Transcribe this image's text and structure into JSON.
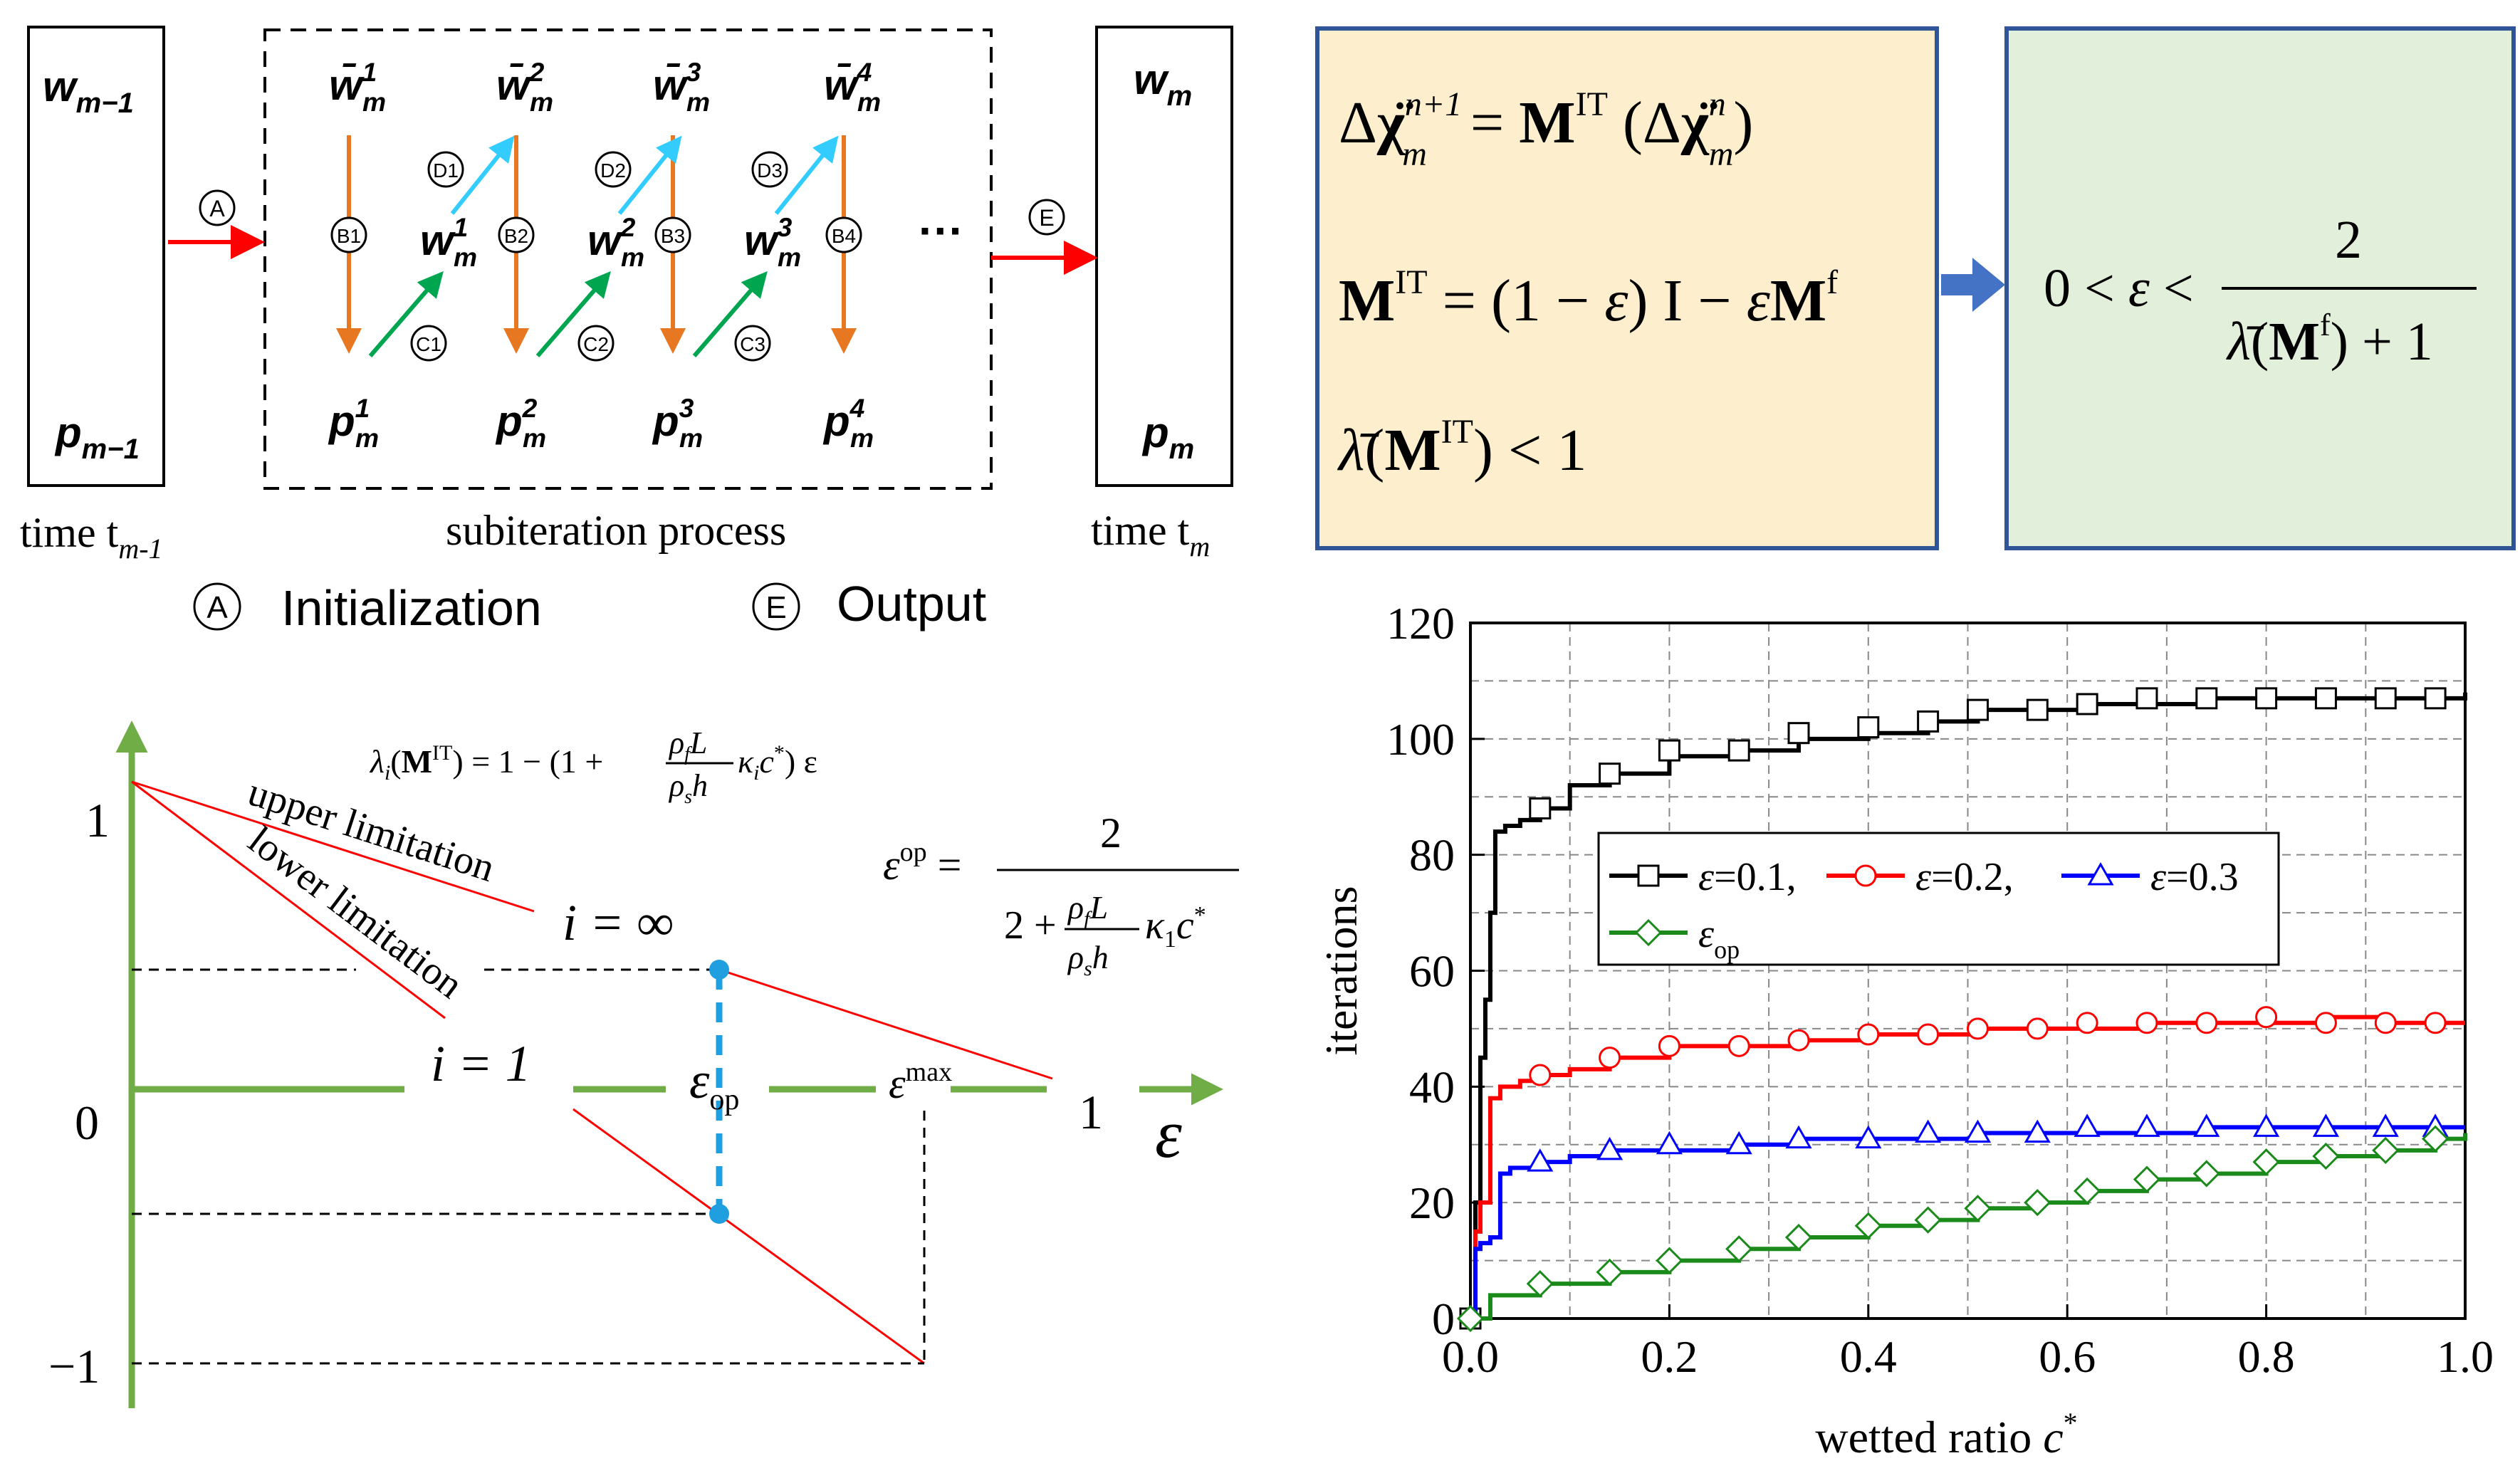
{
  "subiteration": {
    "prev_box": {
      "w_label": "w",
      "w_sub": "m−1",
      "p_label": "p",
      "p_sub": "m−1"
    },
    "next_box": {
      "w_label": "w",
      "w_sub": "m",
      "p_label": "p",
      "p_sub": "m"
    },
    "wbar_labels": [
      {
        "base": "w̄",
        "sup": "1",
        "sub": "m"
      },
      {
        "base": "w̄",
        "sup": "2",
        "sub": "m"
      },
      {
        "base": "w̄",
        "sup": "3",
        "sub": "m"
      },
      {
        "base": "w̄",
        "sup": "4",
        "sub": "m"
      }
    ],
    "w_labels": [
      {
        "base": "w",
        "sup": "1",
        "sub": "m"
      },
      {
        "base": "w",
        "sup": "2",
        "sub": "m"
      },
      {
        "base": "w",
        "sup": "3",
        "sub": "m"
      }
    ],
    "p_labels": [
      {
        "base": "p",
        "sup": "1",
        "sub": "m"
      },
      {
        "base": "p",
        "sup": "2",
        "sub": "m"
      },
      {
        "base": "p",
        "sup": "3",
        "sub": "m"
      },
      {
        "base": "p",
        "sup": "4",
        "sub": "m"
      }
    ],
    "b_markers": [
      "B1",
      "B2",
      "B3",
      "B4"
    ],
    "c_markers": [
      "C1",
      "C2",
      "C3"
    ],
    "d_markers": [
      "D1",
      "D2",
      "D3"
    ],
    "a_marker": "A",
    "e_marker": "E",
    "ellipsis": "···",
    "caption_prev": "time t",
    "caption_prev_sub": "m-1",
    "caption_mid": "subiteration process",
    "caption_next": "time t",
    "caption_next_sub": "m",
    "legend_a": "Initialization",
    "legend_e": "Output",
    "colors": {
      "red": "#ff0000",
      "orange": "#e87722",
      "green": "#00a550",
      "cyan": "#33ccff"
    }
  },
  "equations": {
    "eq1": {
      "delta": "Δ",
      "chi": "χ̈",
      "sup_left": "n+1",
      "sub": "m",
      "equals": " = ",
      "M": "M",
      "M_sup": "IT",
      "sup_right": "n"
    },
    "eq2": {
      "lhs": "M",
      "lhs_sup": "IT",
      "rhs_a": " = (1 − ",
      "eps": "ε",
      "rhs_b": ") I − ",
      "rhs_c": "M",
      "rhs_sup": "f"
    },
    "eq3": {
      "lambda": "λ̄",
      "M": "M",
      "sup": "IT",
      "rest": " < 1"
    },
    "cond": {
      "lhs": "0 < ",
      "eps": "ε",
      "lt": " < ",
      "num": "2",
      "den_lambda": "λ̄",
      "den_M": "M",
      "den_sup": "f",
      "den_tail": " + 1"
    },
    "colors": {
      "box1_fill": "#fdeece",
      "box2_fill": "#e2efda",
      "border": "#2f5597",
      "arrow": "#4472c4"
    }
  },
  "eigen": {
    "y_ticks": [
      "1",
      "0",
      "−1"
    ],
    "x_one": "1",
    "x_axis_label": "ε",
    "upper_label": "upper limitation",
    "lower_label": "lower limitation",
    "i_inf": "i = ∞",
    "i_one": "i = 1",
    "eps_op": "ε",
    "eps_op_sub": "op",
    "eps_max": "ε",
    "eps_max_sup": "max",
    "formula_lambda": "λ",
    "formula_lambda_sub": "i",
    "formula_M": "M",
    "formula_M_sup": "IT",
    "formula_rhs": " = 1 − (1 + ",
    "formula_frac_num": "ρ",
    "formula_frac_num_sub": "f",
    "formula_frac_num_L": "L",
    "formula_frac_den": "ρ",
    "formula_frac_den_sub": "s",
    "formula_frac_den_h": "h",
    "formula_kappa": "κ",
    "formula_kappa_sub": "i",
    "formula_c": "c",
    "formula_c_sup": "*",
    "formula_tail": ") ε",
    "epsop_lhs": "ε",
    "epsop_sup": "op",
    "epsop_eq": " = ",
    "epsop_num": "2",
    "epsop_den_a": "2 + ",
    "epsop_kappa_sub": "1",
    "colors": {
      "axis": "#70ad47",
      "line": "#ff0000",
      "dash": "#1f9fe0",
      "dot": "#1f9fe0"
    }
  },
  "chart_data": {
    "type": "line",
    "title": "",
    "xlabel": "wetted ratio c*",
    "ylabel": "iterations",
    "xlim": [
      0.0,
      1.0
    ],
    "ylim": [
      0,
      120
    ],
    "x_ticks": [
      "0.0",
      "0.2",
      "0.4",
      "0.6",
      "0.8",
      "1.0"
    ],
    "y_ticks": [
      "0",
      "20",
      "40",
      "60",
      "80",
      "100",
      "120"
    ],
    "grid": true,
    "legend_position": "middle",
    "series": [
      {
        "name": "ε=0.1,",
        "legend_base": "ε",
        "legend_rest": "=0.1,",
        "color": "#000000",
        "marker": "square",
        "x": [
          0.0,
          0.005,
          0.01,
          0.015,
          0.02,
          0.025,
          0.03,
          0.035,
          0.05,
          0.07,
          0.1,
          0.14,
          0.2,
          0.27,
          0.33,
          0.4,
          0.46,
          0.51,
          0.57,
          0.62,
          0.68,
          0.74,
          0.8,
          0.86,
          0.92,
          0.97,
          1.0
        ],
        "y": [
          0,
          20,
          45,
          55,
          70,
          84,
          84,
          85,
          86,
          88,
          92,
          94,
          97,
          98,
          100,
          101,
          103,
          105,
          105,
          106,
          106,
          107,
          107,
          107,
          107,
          107,
          108
        ],
        "marker_x": [
          0.0,
          0.07,
          0.14,
          0.2,
          0.27,
          0.33,
          0.4,
          0.46,
          0.51,
          0.57,
          0.62,
          0.68,
          0.74,
          0.8,
          0.86,
          0.92,
          0.97
        ],
        "marker_y": [
          0,
          88,
          94,
          98,
          98,
          101,
          102,
          103,
          105,
          105,
          106,
          107,
          107,
          107,
          107,
          107,
          107
        ]
      },
      {
        "name": "ε=0.2,",
        "legend_base": "ε",
        "legend_rest": "=0.2,",
        "color": "#ff0000",
        "marker": "circle",
        "x": [
          0.0,
          0.005,
          0.01,
          0.02,
          0.03,
          0.05,
          0.07,
          0.1,
          0.14,
          0.2,
          0.27,
          0.33,
          0.4,
          0.46,
          0.51,
          0.57,
          0.62,
          0.68,
          0.74,
          0.8,
          0.86,
          0.92,
          0.97,
          1.0
        ],
        "y": [
          0,
          15,
          20,
          38,
          40,
          41,
          42,
          43,
          45,
          47,
          47,
          48,
          49,
          49,
          50,
          50,
          50,
          51,
          51,
          51,
          52,
          51,
          51,
          51
        ],
        "marker_x": [
          0.07,
          0.14,
          0.2,
          0.27,
          0.33,
          0.4,
          0.46,
          0.51,
          0.57,
          0.62,
          0.68,
          0.74,
          0.8,
          0.86,
          0.92,
          0.97
        ],
        "marker_y": [
          42,
          45,
          47,
          47,
          48,
          49,
          49,
          50,
          50,
          51,
          51,
          51,
          52,
          51,
          51,
          51
        ]
      },
      {
        "name": "ε=0.3",
        "legend_base": "ε",
        "legend_rest": "=0.3",
        "color": "#0000ff",
        "marker": "triangle",
        "x": [
          0.0,
          0.005,
          0.01,
          0.02,
          0.03,
          0.04,
          0.07,
          0.1,
          0.14,
          0.2,
          0.27,
          0.33,
          0.4,
          0.46,
          0.51,
          0.57,
          0.62,
          0.68,
          0.74,
          0.8,
          0.86,
          0.92,
          0.97,
          1.0
        ],
        "y": [
          0,
          12,
          13,
          14,
          25,
          26,
          27,
          28,
          29,
          29,
          30,
          31,
          31,
          31,
          32,
          32,
          32,
          32,
          33,
          33,
          33,
          33,
          33,
          33
        ],
        "marker_x": [
          0.07,
          0.14,
          0.2,
          0.27,
          0.33,
          0.4,
          0.46,
          0.51,
          0.57,
          0.62,
          0.68,
          0.74,
          0.8,
          0.86,
          0.92,
          0.97
        ],
        "marker_y": [
          27,
          29,
          30,
          30,
          31,
          31,
          32,
          32,
          32,
          33,
          33,
          33,
          33,
          33,
          33,
          33
        ]
      },
      {
        "name": "εop",
        "legend_base": "ε",
        "legend_sub": "op",
        "color": "#1a8a1a",
        "marker": "diamond",
        "x": [
          0.0,
          0.02,
          0.07,
          0.14,
          0.2,
          0.27,
          0.33,
          0.4,
          0.46,
          0.51,
          0.57,
          0.62,
          0.68,
          0.74,
          0.8,
          0.86,
          0.92,
          0.97,
          1.0
        ],
        "y": [
          0,
          4,
          6,
          8,
          10,
          12,
          14,
          16,
          17,
          19,
          20,
          22,
          24,
          25,
          27,
          28,
          29,
          31,
          32
        ],
        "marker_x": [
          0.0,
          0.07,
          0.14,
          0.2,
          0.27,
          0.33,
          0.4,
          0.46,
          0.51,
          0.57,
          0.62,
          0.68,
          0.74,
          0.8,
          0.86,
          0.92,
          0.97
        ],
        "marker_y": [
          0,
          6,
          8,
          10,
          12,
          14,
          16,
          17,
          19,
          20,
          22,
          24,
          25,
          27,
          28,
          29,
          31
        ]
      }
    ]
  }
}
